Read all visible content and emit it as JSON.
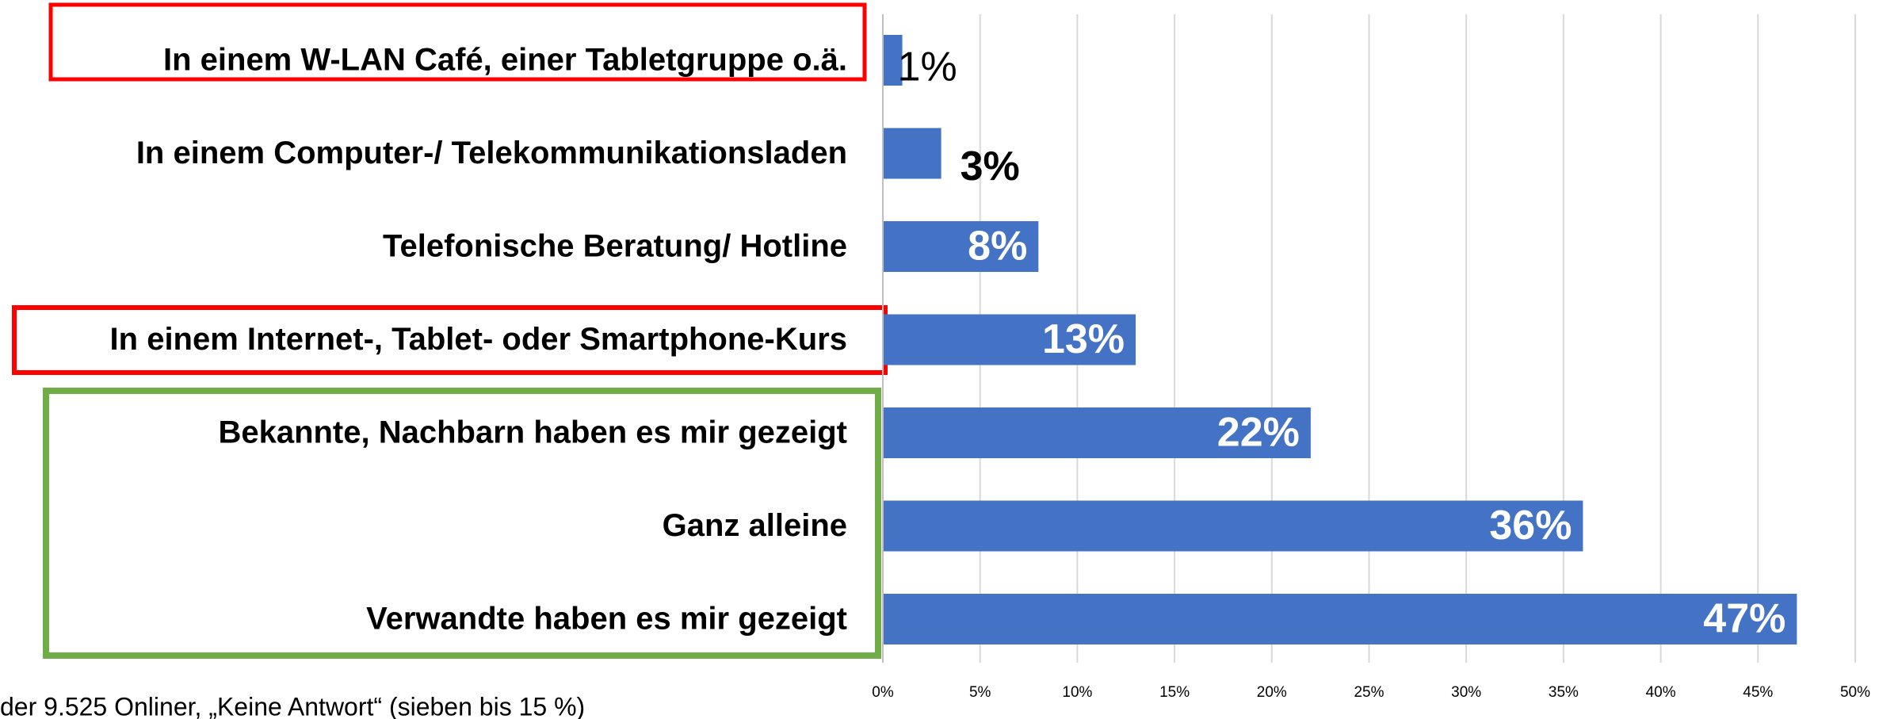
{
  "chart_data": {
    "type": "bar",
    "orientation": "horizontal",
    "categories": [
      "In einem W-LAN Café, einer Tabletgruppe o.ä.",
      "In einem Computer-/ Telekommunikationsladen",
      "Telefonische Beratung/ Hotline",
      "In einem Internet-, Tablet- oder Smartphone-Kurs",
      "Bekannte, Nachbarn haben es mir gezeigt",
      "Ganz alleine",
      "Verwandte haben es mir gezeigt"
    ],
    "values": [
      1,
      3,
      8,
      13,
      22,
      36,
      47
    ],
    "value_labels": [
      "1%",
      "3%",
      "8%",
      "13%",
      "22%",
      "36%",
      "47%"
    ],
    "color": "#4472c4",
    "xlim": [
      0,
      50
    ],
    "xticks": [
      {
        "value": 0,
        "label": "0%"
      },
      {
        "value": 5,
        "label": "5%"
      },
      {
        "value": 10,
        "label": "10%"
      },
      {
        "value": 15,
        "label": "15%"
      },
      {
        "value": 20,
        "label": "20%"
      },
      {
        "value": 25,
        "label": "25%"
      },
      {
        "value": 30,
        "label": "30%"
      },
      {
        "value": 35,
        "label": "35%"
      },
      {
        "value": 40,
        "label": "40%"
      },
      {
        "value": 45,
        "label": "45%"
      },
      {
        "value": 50,
        "label": "50%"
      }
    ],
    "grid": true,
    "note": "der 9.525 Onliner, „Keine Antwort“  (sieben bis 15 %)"
  }
}
